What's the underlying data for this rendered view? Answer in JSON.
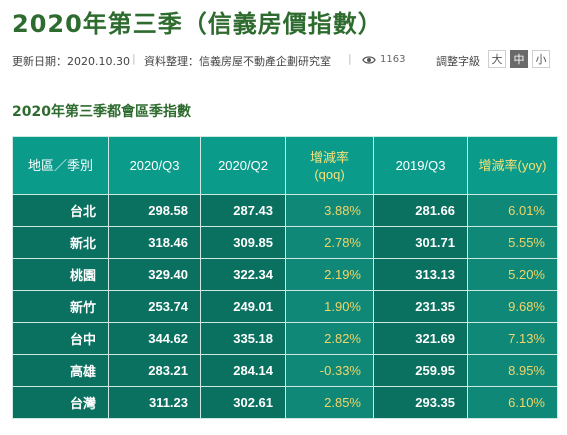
{
  "page": {
    "title": "2020年第三季（信義房價指數）"
  },
  "meta": {
    "update_label": "更新日期：2020.10.30",
    "source_label": "資料整理：信義房屋不動產企劃研究室",
    "sep1": "|",
    "sep2": "|",
    "views": "1163",
    "font_size_label": "調整字級",
    "font_sizes": [
      "大",
      "中",
      "小"
    ],
    "active_font_size": "中"
  },
  "section": {
    "title": "2020年第三季都會區季指數"
  },
  "table": {
    "headers": [
      {
        "line1": "地區／季別",
        "line2": ""
      },
      {
        "line1": "2020/Q3",
        "line2": ""
      },
      {
        "line1": "2020/Q2",
        "line2": ""
      },
      {
        "line1": "增減率",
        "line2": "(qoq)"
      },
      {
        "line1": "2019/Q3",
        "line2": ""
      },
      {
        "line1": "增減率(yoy)",
        "line2": ""
      }
    ],
    "rows": [
      {
        "region": "台北",
        "q3_2020": "298.58",
        "q2_2020": "287.43",
        "qoq": "3.88%",
        "q3_2019": "281.66",
        "yoy": "6.01%"
      },
      {
        "region": "新北",
        "q3_2020": "318.46",
        "q2_2020": "309.85",
        "qoq": "2.78%",
        "q3_2019": "301.71",
        "yoy": "5.55%"
      },
      {
        "region": "桃園",
        "q3_2020": "329.40",
        "q2_2020": "322.34",
        "qoq": "2.19%",
        "q3_2019": "313.13",
        "yoy": "5.20%"
      },
      {
        "region": "新竹",
        "q3_2020": "253.74",
        "q2_2020": "249.01",
        "qoq": "1.90%",
        "q3_2019": "231.35",
        "yoy": "9.68%"
      },
      {
        "region": "台中",
        "q3_2020": "344.62",
        "q2_2020": "335.18",
        "qoq": "2.82%",
        "q3_2019": "321.69",
        "yoy": "7.13%"
      },
      {
        "region": "高雄",
        "q3_2020": "283.21",
        "q2_2020": "284.14",
        "qoq": "-0.33%",
        "q3_2019": "259.95",
        "yoy": "8.95%"
      },
      {
        "region": "台灣",
        "q3_2020": "311.23",
        "q2_2020": "302.61",
        "qoq": "2.85%",
        "q3_2019": "293.35",
        "yoy": "6.10%"
      }
    ]
  },
  "colors": {
    "title_green": "#2e6b2f",
    "table_header": "#0b9b8b",
    "table_value_bg": "#0a7060",
    "table_pct_bg": "#0f8877",
    "pct_text": "#f0d56a"
  },
  "icons": {
    "views": "eye-icon"
  }
}
